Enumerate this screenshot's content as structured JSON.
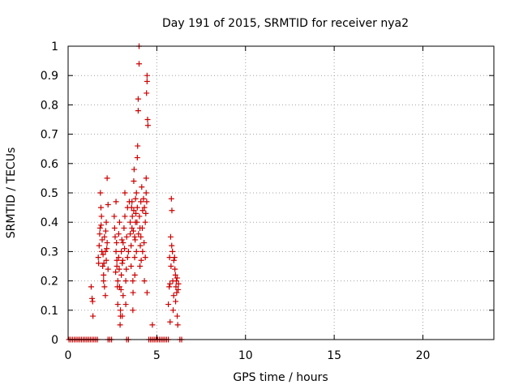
{
  "chart_data": {
    "type": "scatter",
    "title": "Day 191 of 2015, SRMTID for receiver nya2",
    "xlabel": "GPS time / hours",
    "ylabel": "SRMTID / TECUs",
    "xlim": [
      0,
      24
    ],
    "ylim": [
      0,
      1
    ],
    "xticks": [
      0,
      5,
      10,
      15,
      20
    ],
    "xtick_labels": [
      "0",
      "5",
      "10",
      "15",
      "20"
    ],
    "yticks": [
      0,
      0.1,
      0.2,
      0.3,
      0.4,
      0.5,
      0.6,
      0.7,
      0.8,
      0.9,
      1
    ],
    "ytick_labels": [
      "0",
      "0.1",
      "0.2",
      "0.3",
      "0.4",
      "0.5",
      "0.6",
      "0.7",
      "0.8",
      "0.9",
      "1"
    ],
    "grid": "dotted, major x and y",
    "marker": "+",
    "color": "#cc0000",
    "series": [
      {
        "name": "SRMTID",
        "points": [
          [
            0.05,
            0
          ],
          [
            0.15,
            0
          ],
          [
            0.25,
            0
          ],
          [
            0.35,
            0
          ],
          [
            0.45,
            0
          ],
          [
            0.55,
            0
          ],
          [
            0.65,
            0
          ],
          [
            0.75,
            0
          ],
          [
            0.85,
            0
          ],
          [
            0.95,
            0
          ],
          [
            1.05,
            0
          ],
          [
            1.15,
            0
          ],
          [
            1.25,
            0
          ],
          [
            1.35,
            0
          ],
          [
            1.45,
            0
          ],
          [
            1.55,
            0
          ],
          [
            1.65,
            0
          ],
          [
            2.25,
            0
          ],
          [
            2.35,
            0
          ],
          [
            2.45,
            0
          ],
          [
            3.3,
            0
          ],
          [
            3.4,
            0
          ],
          [
            4.55,
            0
          ],
          [
            4.65,
            0
          ],
          [
            4.75,
            0
          ],
          [
            4.85,
            0
          ],
          [
            4.95,
            0
          ],
          [
            5.05,
            0
          ],
          [
            5.15,
            0
          ],
          [
            5.25,
            0
          ],
          [
            5.35,
            0
          ],
          [
            5.45,
            0
          ],
          [
            5.55,
            0
          ],
          [
            5.65,
            0
          ],
          [
            6.3,
            0
          ],
          [
            6.4,
            0
          ],
          [
            1.3,
            0.18
          ],
          [
            1.35,
            0.14
          ],
          [
            1.4,
            0.08
          ],
          [
            1.38,
            0.13
          ],
          [
            1.7,
            0.28
          ],
          [
            1.75,
            0.32
          ],
          [
            1.8,
            0.38
          ],
          [
            1.82,
            0.5
          ],
          [
            1.85,
            0.45
          ],
          [
            1.88,
            0.42
          ],
          [
            1.9,
            0.3
          ],
          [
            1.95,
            0.25
          ],
          [
            2.0,
            0.22
          ],
          [
            2.0,
            0.2
          ],
          [
            2.05,
            0.18
          ],
          [
            2.05,
            0.35
          ],
          [
            2.1,
            0.3
          ],
          [
            2.1,
            0.15
          ],
          [
            2.15,
            0.27
          ],
          [
            2.15,
            0.4
          ],
          [
            2.2,
            0.33
          ],
          [
            2.2,
            0.55
          ],
          [
            2.25,
            0.46
          ],
          [
            2.25,
            0.24
          ],
          [
            1.72,
            0.26
          ],
          [
            1.78,
            0.36
          ],
          [
            1.86,
            0.39
          ],
          [
            1.92,
            0.34
          ],
          [
            1.97,
            0.29
          ],
          [
            2.02,
            0.26
          ],
          [
            2.12,
            0.37
          ],
          [
            2.18,
            0.31
          ],
          [
            2.6,
            0.42
          ],
          [
            2.62,
            0.38
          ],
          [
            2.65,
            0.35
          ],
          [
            2.7,
            0.3
          ],
          [
            2.7,
            0.47
          ],
          [
            2.75,
            0.27
          ],
          [
            2.75,
            0.25
          ],
          [
            2.8,
            0.2
          ],
          [
            2.8,
            0.12
          ],
          [
            2.85,
            0.28
          ],
          [
            2.85,
            0.36
          ],
          [
            2.9,
            0.4
          ],
          [
            2.9,
            0.18
          ],
          [
            2.95,
            0.1
          ],
          [
            2.95,
            0.08
          ],
          [
            3.0,
            0.22
          ],
          [
            3.0,
            0.3
          ],
          [
            3.05,
            0.26
          ],
          [
            3.1,
            0.15
          ],
          [
            3.1,
            0.33
          ],
          [
            3.15,
            0.38
          ],
          [
            3.2,
            0.42
          ],
          [
            3.2,
            0.5
          ],
          [
            3.25,
            0.12
          ],
          [
            3.25,
            0.2
          ],
          [
            3.3,
            0.35
          ],
          [
            3.35,
            0.28
          ],
          [
            3.35,
            0.45
          ],
          [
            2.68,
            0.23
          ],
          [
            2.73,
            0.33
          ],
          [
            2.78,
            0.18
          ],
          [
            2.88,
            0.24
          ],
          [
            2.98,
            0.17
          ],
          [
            3.03,
            0.34
          ],
          [
            3.08,
            0.27
          ],
          [
            3.18,
            0.31
          ],
          [
            3.28,
            0.24
          ],
          [
            3.05,
            0.08
          ],
          [
            2.93,
            0.05
          ],
          [
            3.4,
            0.3
          ],
          [
            3.45,
            0.47
          ],
          [
            3.5,
            0.36
          ],
          [
            3.5,
            0.4
          ],
          [
            3.55,
            0.25
          ],
          [
            3.55,
            0.32
          ],
          [
            3.6,
            0.38
          ],
          [
            3.6,
            0.47
          ],
          [
            3.65,
            0.2
          ],
          [
            3.65,
            0.1
          ],
          [
            3.7,
            0.44
          ],
          [
            3.7,
            0.54
          ],
          [
            3.72,
            0.58
          ],
          [
            3.75,
            0.28
          ],
          [
            3.75,
            0.35
          ],
          [
            3.8,
            0.48
          ],
          [
            3.8,
            0.4
          ],
          [
            3.85,
            0.3
          ],
          [
            3.85,
            0.5
          ],
          [
            3.9,
            0.45
          ],
          [
            3.9,
            0.62
          ],
          [
            3.92,
            0.66
          ],
          [
            3.95,
            0.78
          ],
          [
            3.95,
            0.82
          ],
          [
            4.0,
            1.0
          ],
          [
            4.0,
            0.94
          ],
          [
            4.02,
            0.42
          ],
          [
            4.05,
            0.38
          ],
          [
            4.05,
            0.25
          ],
          [
            4.1,
            0.35
          ],
          [
            4.1,
            0.47
          ],
          [
            4.15,
            0.52
          ],
          [
            4.2,
            0.44
          ],
          [
            4.2,
            0.3
          ],
          [
            4.25,
            0.48
          ],
          [
            4.3,
            0.45
          ],
          [
            4.3,
            0.2
          ],
          [
            4.35,
            0.4
          ],
          [
            4.35,
            0.28
          ],
          [
            4.4,
            0.5
          ],
          [
            4.4,
            0.55
          ],
          [
            4.42,
            0.84
          ],
          [
            4.45,
            0.9
          ],
          [
            4.45,
            0.88
          ],
          [
            4.48,
            0.75
          ],
          [
            4.5,
            0.73
          ],
          [
            4.45,
            0.16
          ],
          [
            3.58,
            0.45
          ],
          [
            3.62,
            0.42
          ],
          [
            3.68,
            0.37
          ],
          [
            3.78,
            0.34
          ],
          [
            3.82,
            0.43
          ],
          [
            3.88,
            0.4
          ],
          [
            3.97,
            0.36
          ],
          [
            4.07,
            0.32
          ],
          [
            4.12,
            0.27
          ],
          [
            4.18,
            0.38
          ],
          [
            4.28,
            0.33
          ],
          [
            4.38,
            0.43
          ],
          [
            4.43,
            0.47
          ],
          [
            3.66,
            0.16
          ],
          [
            3.76,
            0.22
          ],
          [
            4.75,
            0.05
          ],
          [
            5.65,
            0.12
          ],
          [
            5.7,
            0.18
          ],
          [
            5.72,
            0.28
          ],
          [
            5.75,
            0.06
          ],
          [
            5.78,
            0.35
          ],
          [
            5.8,
            0.25
          ],
          [
            5.82,
            0.48
          ],
          [
            5.85,
            0.44
          ],
          [
            5.88,
            0.3
          ],
          [
            5.9,
            0.2
          ],
          [
            5.92,
            0.1
          ],
          [
            5.95,
            0.15
          ],
          [
            6.0,
            0.28
          ],
          [
            6.02,
            0.24
          ],
          [
            6.05,
            0.22
          ],
          [
            6.08,
            0.18
          ],
          [
            6.1,
            0.2
          ],
          [
            6.12,
            0.16
          ],
          [
            6.15,
            0.08
          ],
          [
            6.18,
            0.05
          ],
          [
            6.2,
            0.17
          ],
          [
            6.22,
            0.19
          ],
          [
            5.74,
            0.19
          ],
          [
            5.84,
            0.32
          ],
          [
            5.96,
            0.27
          ],
          [
            6.06,
            0.13
          ],
          [
            6.14,
            0.21
          ]
        ]
      }
    ]
  }
}
